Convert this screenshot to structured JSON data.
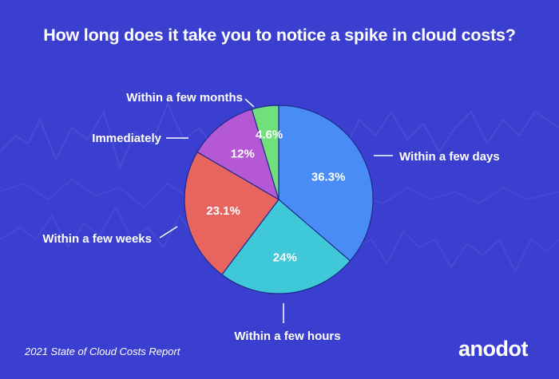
{
  "title": "How long does it take you to notice a spike in cloud costs?",
  "footer": "2021 State of Cloud Costs Report",
  "logo": "anodot",
  "colors": {
    "background": "#3a3fd0",
    "slice_outline": "#1f2a8c",
    "label_text": "#ffffff",
    "logo": "#ffffff"
  },
  "chart_data": {
    "type": "pie",
    "title": "How long does it take you to notice a spike in cloud costs?",
    "start_angle": "12 o'clock",
    "direction": "clockwise",
    "slices": [
      {
        "label": "Within a few days",
        "value": 36.3,
        "display": "36.3%",
        "color": "#4a8cf5"
      },
      {
        "label": "Within a few hours",
        "value": 24,
        "display": "24%",
        "color": "#3ec8d8"
      },
      {
        "label": "Within a few weeks",
        "value": 23.1,
        "display": "23.1%",
        "color": "#e8655f"
      },
      {
        "label": "Immediately",
        "value": 12,
        "display": "12%",
        "color": "#b458d6"
      },
      {
        "label": "Within a few months",
        "value": 4.6,
        "display": "4.6%",
        "color": "#6fe07a"
      }
    ]
  }
}
